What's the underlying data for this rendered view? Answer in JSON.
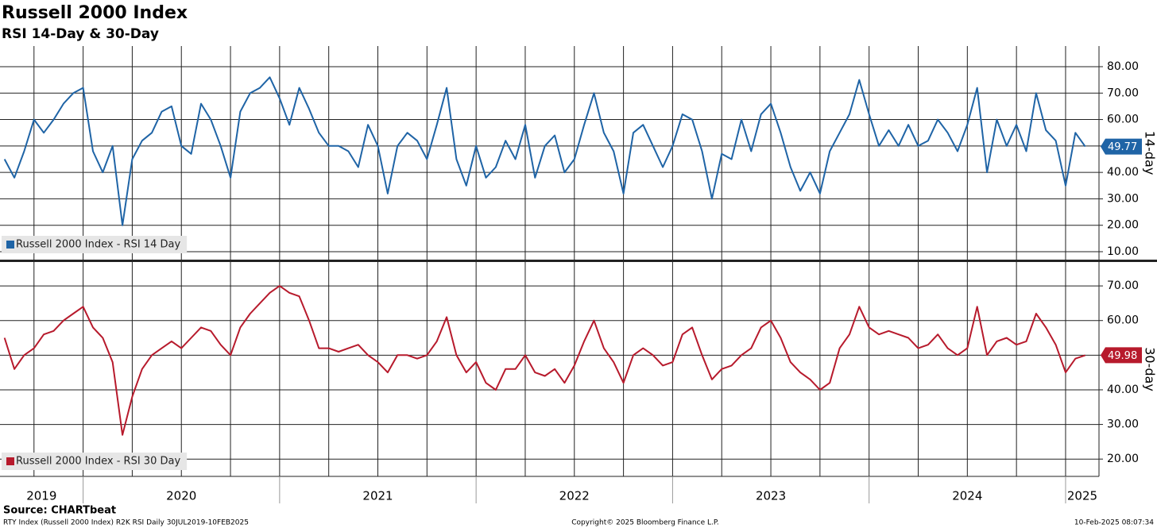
{
  "header": {
    "title": "Russell 2000 Index",
    "subtitle": "RSI 14-Day & 30-Day"
  },
  "footer": {
    "source": "Source: CHARTbeat",
    "description": "RTY Index (Russell 2000 Index) R2K RSI  Daily 30JUL2019-10FEB2025",
    "copyright": "Copyright© 2025 Bloomberg Finance L.P.",
    "timestamp": "10-Feb-2025 08:07:34"
  },
  "chart_data": [
    {
      "type": "line",
      "y_label": "14-day",
      "xlim": [
        2019.577,
        2025.17
      ],
      "xgrid": [
        2019.75,
        2020,
        2020.25,
        2020.5,
        2020.75,
        2021,
        2021.25,
        2021.5,
        2021.75,
        2022,
        2022.25,
        2022.5,
        2022.75,
        2023,
        2023.25,
        2023.5,
        2023.75,
        2024,
        2024.25,
        2024.5,
        2024.75,
        2025
      ],
      "ylim": [
        7,
        87.8
      ],
      "yticks": [
        {
          "value": 10,
          "label": "10.00"
        },
        {
          "value": 20,
          "label": "20.00"
        },
        {
          "value": 30,
          "label": "30.00"
        },
        {
          "value": 40,
          "label": "40.00"
        },
        {
          "value": 50,
          "label": "50.00"
        },
        {
          "value": 60,
          "label": "60.00"
        },
        {
          "value": 70,
          "label": "70.00"
        },
        {
          "value": 80,
          "label": "80.00"
        }
      ],
      "grid": true,
      "legend": "lower left",
      "x": [
        2019.6,
        2019.65,
        2019.7,
        2019.75,
        2019.8,
        2019.85,
        2019.9,
        2019.95,
        2020,
        2020.05,
        2020.1,
        2020.15,
        2020.2,
        2020.25,
        2020.3,
        2020.35,
        2020.4,
        2020.45,
        2020.5,
        2020.55,
        2020.6,
        2020.65,
        2020.7,
        2020.75,
        2020.8,
        2020.85,
        2020.9,
        2020.95,
        2021,
        2021.05,
        2021.1,
        2021.15,
        2021.2,
        2021.25,
        2021.3,
        2021.35,
        2021.4,
        2021.45,
        2021.5,
        2021.55,
        2021.6,
        2021.65,
        2021.7,
        2021.75,
        2021.8,
        2021.85,
        2021.9,
        2021.95,
        2022,
        2022.05,
        2022.1,
        2022.15,
        2022.2,
        2022.25,
        2022.3,
        2022.35,
        2022.4,
        2022.45,
        2022.5,
        2022.55,
        2022.6,
        2022.65,
        2022.7,
        2022.75,
        2022.8,
        2022.85,
        2022.9,
        2022.95,
        2023,
        2023.05,
        2023.1,
        2023.15,
        2023.2,
        2023.25,
        2023.3,
        2023.35,
        2023.4,
        2023.45,
        2023.5,
        2023.55,
        2023.6,
        2023.65,
        2023.7,
        2023.75,
        2023.8,
        2023.85,
        2023.9,
        2023.95,
        2024,
        2024.05,
        2024.1,
        2024.15,
        2024.2,
        2024.25,
        2024.3,
        2024.35,
        2024.4,
        2024.45,
        2024.5,
        2024.55,
        2024.6,
        2024.65,
        2024.7,
        2024.75,
        2024.8,
        2024.85,
        2024.9,
        2024.95,
        2025,
        2025.05,
        2025.1
      ],
      "series": [
        {
          "name": "Russell 2000 Index - RSI 14 Day",
          "color": "#1f64a6",
          "values": [
            45,
            38,
            48,
            60,
            55,
            60,
            66,
            70,
            72,
            48,
            40,
            50,
            20,
            45,
            52,
            55,
            63,
            65,
            50,
            47,
            66,
            60,
            50,
            38,
            63,
            70,
            72,
            76,
            68,
            58,
            72,
            64,
            55,
            50,
            50,
            48,
            42,
            58,
            50,
            32,
            50,
            55,
            52,
            45,
            58,
            72,
            45,
            35,
            50,
            38,
            42,
            52,
            45,
            58,
            38,
            50,
            54,
            40,
            45,
            58,
            70,
            55,
            48,
            32,
            55,
            58,
            50,
            42,
            50,
            62,
            60,
            48,
            30,
            47,
            45,
            60,
            48,
            62,
            66,
            55,
            42,
            33,
            40,
            32,
            48,
            55,
            62,
            75,
            62,
            50,
            56,
            50,
            58,
            50,
            52,
            60,
            55,
            48,
            58,
            72,
            40,
            60,
            50,
            58,
            48,
            70,
            56,
            52,
            35,
            55,
            49.77
          ]
        }
      ]
    },
    {
      "type": "line",
      "y_label": "30-day",
      "xlim": [
        2019.577,
        2025.17
      ],
      "xgrid": [
        2019.75,
        2020,
        2020.25,
        2020.5,
        2020.75,
        2021,
        2021.25,
        2021.5,
        2021.75,
        2022,
        2022.25,
        2022.5,
        2022.75,
        2023,
        2023.25,
        2023.5,
        2023.75,
        2024,
        2024.25,
        2024.5,
        2024.75,
        2025
      ],
      "xticks": [
        2019,
        2020,
        2021,
        2022,
        2023,
        2024,
        2025
      ],
      "ylim": [
        15,
        76.9
      ],
      "yticks": [
        {
          "value": 20,
          "label": "20.00"
        },
        {
          "value": 30,
          "label": "30.00"
        },
        {
          "value": 40,
          "label": "40.00"
        },
        {
          "value": 50,
          "label": "50.00"
        },
        {
          "value": 60,
          "label": "60.00"
        },
        {
          "value": 70,
          "label": "70.00"
        }
      ],
      "grid": true,
      "legend": "lower left",
      "x": [
        2019.6,
        2019.65,
        2019.7,
        2019.75,
        2019.8,
        2019.85,
        2019.9,
        2019.95,
        2020,
        2020.05,
        2020.1,
        2020.15,
        2020.2,
        2020.25,
        2020.3,
        2020.35,
        2020.4,
        2020.45,
        2020.5,
        2020.55,
        2020.6,
        2020.65,
        2020.7,
        2020.75,
        2020.8,
        2020.85,
        2020.9,
        2020.95,
        2021,
        2021.05,
        2021.1,
        2021.15,
        2021.2,
        2021.25,
        2021.3,
        2021.35,
        2021.4,
        2021.45,
        2021.5,
        2021.55,
        2021.6,
        2021.65,
        2021.7,
        2021.75,
        2021.8,
        2021.85,
        2021.9,
        2021.95,
        2022,
        2022.05,
        2022.1,
        2022.15,
        2022.2,
        2022.25,
        2022.3,
        2022.35,
        2022.4,
        2022.45,
        2022.5,
        2022.55,
        2022.6,
        2022.65,
        2022.7,
        2022.75,
        2022.8,
        2022.85,
        2022.9,
        2022.95,
        2023,
        2023.05,
        2023.1,
        2023.15,
        2023.2,
        2023.25,
        2023.3,
        2023.35,
        2023.4,
        2023.45,
        2023.5,
        2023.55,
        2023.6,
        2023.65,
        2023.7,
        2023.75,
        2023.8,
        2023.85,
        2023.9,
        2023.95,
        2024,
        2024.05,
        2024.1,
        2024.15,
        2024.2,
        2024.25,
        2024.3,
        2024.35,
        2024.4,
        2024.45,
        2024.5,
        2024.55,
        2024.6,
        2024.65,
        2024.7,
        2024.75,
        2024.8,
        2024.85,
        2024.9,
        2024.95,
        2025,
        2025.05,
        2025.1
      ],
      "series": [
        {
          "name": "Russell 2000 Index - RSI 30 Day",
          "color": "#b71a2c",
          "values": [
            55,
            46,
            50,
            52,
            56,
            57,
            60,
            62,
            64,
            58,
            55,
            48,
            27,
            38,
            46,
            50,
            52,
            54,
            52,
            55,
            58,
            57,
            53,
            50,
            58,
            62,
            65,
            68,
            70,
            68,
            67,
            60,
            52,
            52,
            51,
            52,
            53,
            50,
            48,
            45,
            50,
            50,
            49,
            50,
            54,
            61,
            50,
            45,
            48,
            42,
            40,
            46,
            46,
            50,
            45,
            44,
            46,
            42,
            47,
            54,
            60,
            52,
            48,
            42,
            50,
            52,
            50,
            47,
            48,
            56,
            58,
            50,
            43,
            46,
            47,
            50,
            52,
            58,
            60,
            55,
            48,
            45,
            43,
            40,
            42,
            52,
            56,
            64,
            58,
            56,
            57,
            56,
            55,
            52,
            53,
            56,
            52,
            50,
            52,
            64,
            50,
            54,
            55,
            53,
            54,
            62,
            58,
            53,
            45,
            49,
            49.98
          ]
        }
      ]
    }
  ]
}
